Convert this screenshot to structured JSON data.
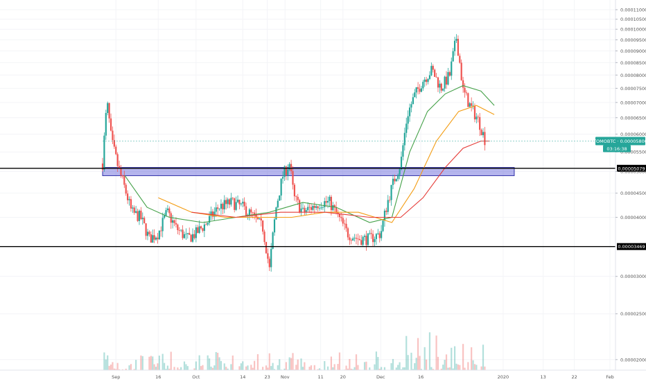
{
  "chart_data": {
    "type": "candlestick",
    "symbol_badge": "TOMOBTC",
    "price_axis": {
      "range": [
        1.9e-06,
        1.13e-05
      ],
      "ticks": [
        "0.00002000",
        "0.00002500",
        "0.00003000",
        "0.00004000",
        "0.00004500",
        "0.00005000",
        "0.00005500",
        "0.00006000",
        "0.00006500",
        "0.00007000",
        "0.00007500",
        "0.00008000",
        "0.00008500",
        "0.00009000",
        "0.00009500",
        "0.00010000",
        "0.00010500",
        "0.00011000"
      ],
      "tick_values": [
        2e-06,
        2.5e-06,
        3e-06,
        4e-06,
        4.5e-06,
        5e-06,
        5.5e-06,
        6e-06,
        6.5e-06,
        7e-06,
        7.5e-06,
        8e-06,
        8.5e-06,
        9e-06,
        9.5e-06,
        1e-05,
        1.05e-05,
        1.1e-05
      ]
    },
    "time_axis": {
      "labels": [
        "Sep",
        "16",
        "Oct",
        "14",
        "23",
        "Nov",
        "11",
        "20",
        "Dec",
        "16",
        "2020",
        "13",
        "22",
        "Feb"
      ],
      "label_days": [
        6,
        25,
        42,
        63,
        74,
        82,
        98,
        108,
        125,
        143,
        180,
        198,
        212,
        228
      ]
    },
    "current_price": {
      "label": "0.00005800",
      "value": 5.8e-06,
      "countdown": "03:16:38"
    },
    "horizontal_levels": [
      {
        "label": "0.00005079",
        "value": 5.079e-06
      },
      {
        "label": "0.00003469",
        "value": 3.469e-06
      }
    ],
    "supply_zone": {
      "low": 4.9e-06,
      "high": 5.1e-06
    },
    "close_series": [
      {
        "day": 0,
        "close": 5.2e-06
      },
      {
        "day": 2,
        "close": 7e-06
      },
      {
        "day": 4,
        "close": 5.8e-06
      },
      {
        "day": 7,
        "close": 5.1e-06
      },
      {
        "day": 10,
        "close": 4.6e-06
      },
      {
        "day": 13,
        "close": 4.1e-06
      },
      {
        "day": 17,
        "close": 4e-06
      },
      {
        "day": 21,
        "close": 3.6e-06
      },
      {
        "day": 25,
        "close": 3.7e-06
      },
      {
        "day": 29,
        "close": 4.1e-06
      },
      {
        "day": 33,
        "close": 3.8e-06
      },
      {
        "day": 38,
        "close": 3.6e-06
      },
      {
        "day": 42,
        "close": 3.7e-06
      },
      {
        "day": 47,
        "close": 3.9e-06
      },
      {
        "day": 52,
        "close": 4.2e-06
      },
      {
        "day": 58,
        "close": 4.3e-06
      },
      {
        "day": 63,
        "close": 4.2e-06
      },
      {
        "day": 68,
        "close": 4e-06
      },
      {
        "day": 72,
        "close": 3.8e-06
      },
      {
        "day": 75,
        "close": 3.1e-06
      },
      {
        "day": 78,
        "close": 4.2e-06
      },
      {
        "day": 81,
        "close": 4.9e-06
      },
      {
        "day": 84,
        "close": 5.2e-06
      },
      {
        "day": 86,
        "close": 4.4e-06
      },
      {
        "day": 90,
        "close": 4.1e-06
      },
      {
        "day": 94,
        "close": 4.2e-06
      },
      {
        "day": 98,
        "close": 4.3e-06
      },
      {
        "day": 102,
        "close": 4.3e-06
      },
      {
        "day": 106,
        "close": 4e-06
      },
      {
        "day": 110,
        "close": 3.7e-06
      },
      {
        "day": 115,
        "close": 3.6e-06
      },
      {
        "day": 120,
        "close": 3.6e-06
      },
      {
        "day": 125,
        "close": 3.7e-06
      },
      {
        "day": 128,
        "close": 4.3e-06
      },
      {
        "day": 131,
        "close": 4.8e-06
      },
      {
        "day": 134,
        "close": 5.2e-06
      },
      {
        "day": 137,
        "close": 6.6e-06
      },
      {
        "day": 140,
        "close": 7.2e-06
      },
      {
        "day": 144,
        "close": 7.8e-06
      },
      {
        "day": 148,
        "close": 8.2e-06
      },
      {
        "day": 152,
        "close": 7.5e-06
      },
      {
        "day": 156,
        "close": 8e-06
      },
      {
        "day": 159,
        "close": 9.6e-06
      },
      {
        "day": 162,
        "close": 7.4e-06
      },
      {
        "day": 165,
        "close": 6.9e-06
      },
      {
        "day": 169,
        "close": 6.4e-06
      },
      {
        "day": 172,
        "close": 5.8e-06
      }
    ],
    "moving_averages": [
      {
        "color": "#43a047",
        "points": [
          [
            10,
            4.9e-06
          ],
          [
            20,
            4.2e-06
          ],
          [
            30,
            4e-06
          ],
          [
            45,
            3.9e-06
          ],
          [
            60,
            4e-06
          ],
          [
            75,
            4.1e-06
          ],
          [
            90,
            4.3e-06
          ],
          [
            105,
            4.2e-06
          ],
          [
            120,
            3.9e-06
          ],
          [
            130,
            4e-06
          ],
          [
            138,
            5.5e-06
          ],
          [
            146,
            6.7e-06
          ],
          [
            154,
            7.3e-06
          ],
          [
            162,
            7.6e-06
          ],
          [
            170,
            7.4e-06
          ],
          [
            176,
            6.9e-06
          ]
        ]
      },
      {
        "color": "#f39c12",
        "points": [
          [
            25,
            4.4e-06
          ],
          [
            40,
            4.1e-06
          ],
          [
            55,
            4e-06
          ],
          [
            70,
            4e-06
          ],
          [
            85,
            4e-06
          ],
          [
            100,
            4.1e-06
          ],
          [
            115,
            4.1e-06
          ],
          [
            130,
            3.9e-06
          ],
          [
            140,
            4.6e-06
          ],
          [
            150,
            5.8e-06
          ],
          [
            160,
            6.7e-06
          ],
          [
            168,
            6.9e-06
          ],
          [
            176,
            6.6e-06
          ]
        ]
      },
      {
        "color": "#e53935",
        "points": [
          [
            40,
            4.1e-06
          ],
          [
            60,
            4e-06
          ],
          [
            80,
            4.1e-06
          ],
          [
            100,
            4.1e-06
          ],
          [
            120,
            4e-06
          ],
          [
            134,
            4e-06
          ],
          [
            144,
            4.4e-06
          ],
          [
            154,
            5.1e-06
          ],
          [
            162,
            5.6e-06
          ],
          [
            170,
            5.8e-06
          ],
          [
            174,
            5.8e-06
          ]
        ]
      }
    ],
    "volume_range": [
      0,
      1
    ]
  }
}
